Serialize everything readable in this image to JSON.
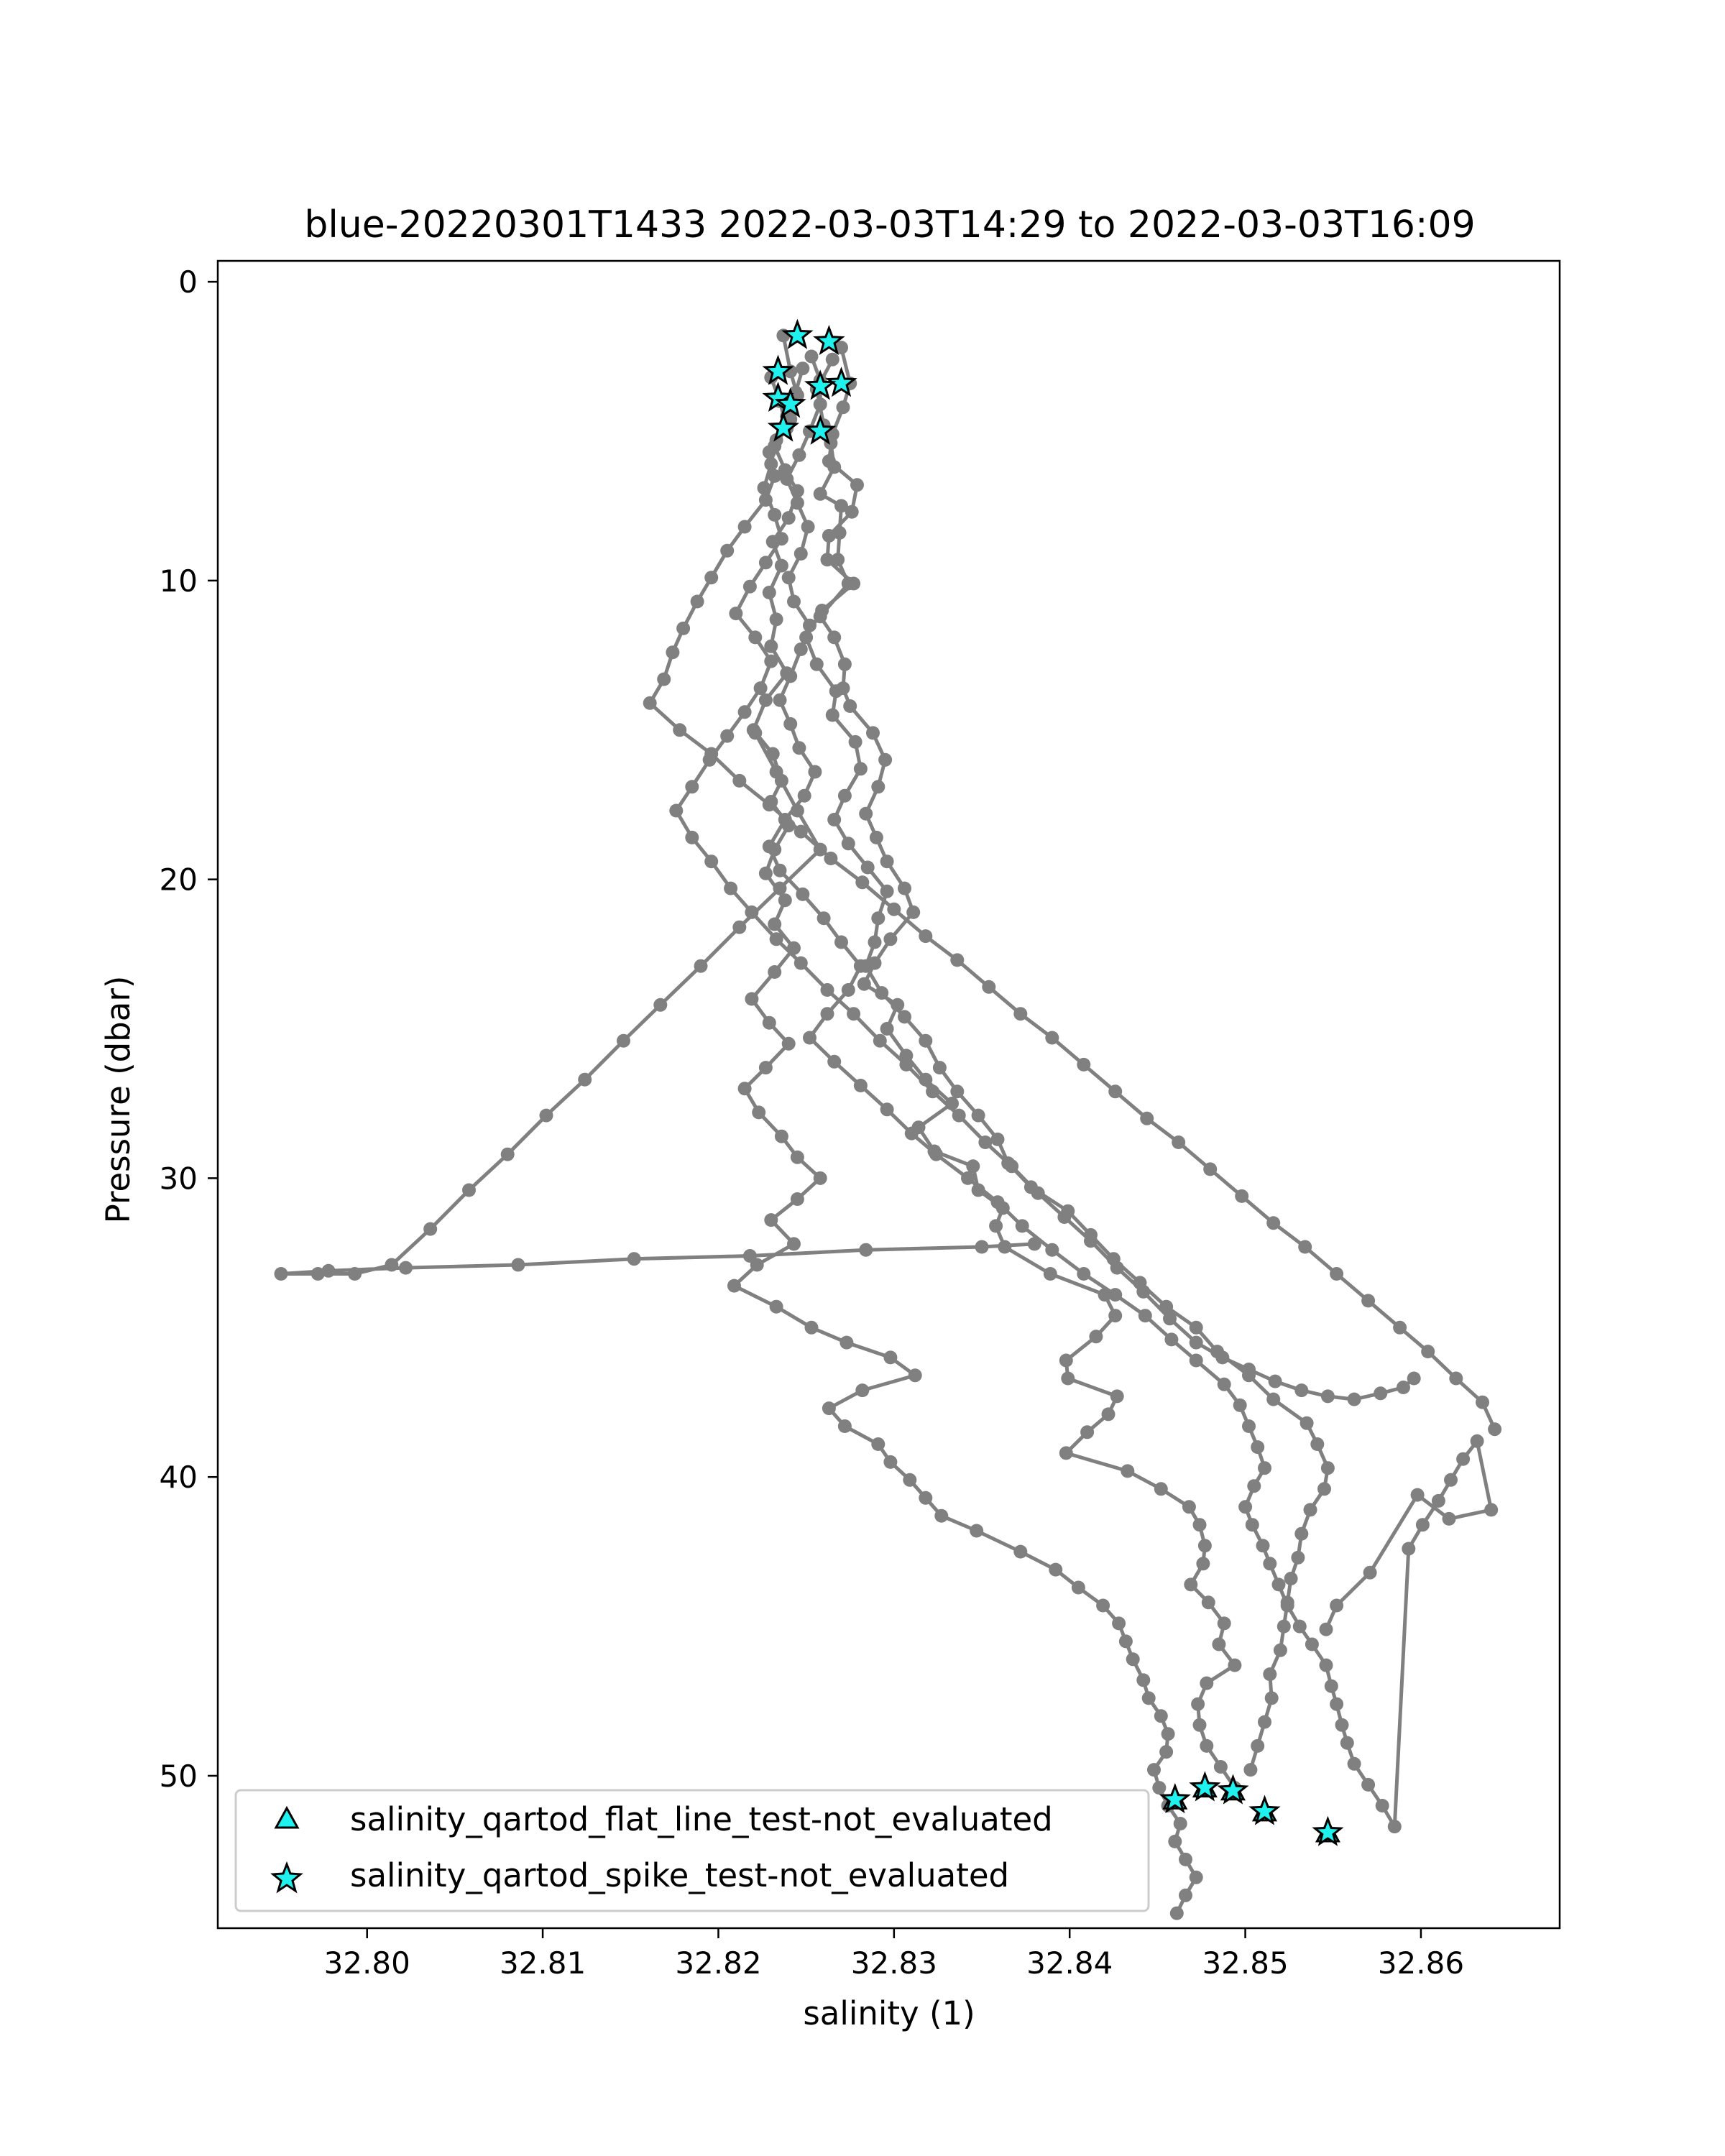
{
  "chart_data": {
    "type": "scatter",
    "title": "blue-20220301T1433 2022-03-03T14:29 to 2022-03-03T16:09",
    "xlabel": "salinity (1)",
    "ylabel": "Pressure (dbar)",
    "xlim": [
      32.7915,
      32.8679
    ],
    "ylim": [
      55.1,
      -0.7
    ],
    "y_inverted": true,
    "grid": false,
    "xticks": [
      32.8,
      32.81,
      32.82,
      32.83,
      32.84,
      32.85,
      32.86
    ],
    "xtick_labels": [
      "32.80",
      "32.81",
      "32.82",
      "32.83",
      "32.84",
      "32.85",
      "32.86"
    ],
    "yticks": [
      0,
      10,
      20,
      30,
      40,
      50
    ],
    "ytick_labels": [
      "0",
      "10",
      "20",
      "30",
      "40",
      "50"
    ],
    "legend_position": "lower-left",
    "colors": {
      "line": "#808080",
      "marker_fill": "#1ff1ee",
      "marker_edge": "#000000"
    },
    "series": [
      {
        "kind": "line",
        "profiles": [
          {
            "x": [
              32.8265,
              32.8256,
              32.826,
              32.8264,
              32.8266,
              32.8258,
              32.827,
              32.8269,
              32.8268,
              32.8274,
              32.8258,
              32.8266,
              32.8272,
              32.8271,
              32.8275,
              32.8288,
              32.8295,
              32.8291,
              32.8284,
              32.829,
              32.8296,
              32.8306,
              32.8311,
              32.8298,
              32.8289,
              32.8283,
              32.8302,
              32.8296,
              32.8307,
              32.8318,
              32.8333,
              32.8314,
              32.8323,
              32.8345,
              32.8348,
              32.8362,
              32.8358,
              32.8363,
              32.8389,
              32.842,
              32.8426,
              32.8415,
              32.8398,
              32.8399,
              32.8427,
              32.8422,
              32.841,
              32.8398,
              32.8433,
              32.8452,
              32.8468,
              32.8474,
              32.8477,
              32.8476,
              32.8469,
              32.8479,
              32.8488,
              32.8485,
              32.8494,
              32.8478,
              32.8473,
              32.8474,
              32.8478,
              32.8486,
              32.8494
            ],
            "y": [
              2.6,
              3.6,
              4.8,
              5.4,
              6.2,
              7.1,
              7.5,
              8.4,
              9.3,
              10.1,
              11.2,
              11.9,
              12.8,
              13.6,
              14.2,
              15.1,
              16.0,
              16.9,
              17.8,
              18.6,
              19.4,
              20.3,
              21.1,
              22.0,
              22.8,
              23.5,
              24.2,
              25.0,
              25.9,
              26.7,
              27.5,
              28.3,
              29.1,
              29.6,
              30.4,
              31.0,
              31.6,
              32.3,
              33.2,
              33.9,
              34.6,
              35.3,
              36.1,
              36.7,
              37.3,
              37.9,
              38.5,
              39.2,
              39.8,
              40.4,
              41.0,
              41.6,
              42.3,
              42.9,
              43.6,
              44.2,
              44.9,
              45.6,
              46.3,
              46.9,
              47.6,
              48.3,
              49.0,
              49.7,
              50.4
            ]
          },
          {
            "x": [
              32.8237,
              32.8241,
              32.8245,
              32.8241,
              32.8232,
              32.8238,
              32.8245,
              32.824,
              32.8231,
              32.8236,
              32.8229,
              32.8233,
              32.823,
              32.8239,
              32.8227,
              32.822,
              32.8231,
              32.8236,
              32.823,
              32.824,
              32.8232,
              32.8227,
              32.8238,
              32.8232,
              32.8243,
              32.8232,
              32.8219,
              32.8229,
              32.824,
              32.8227,
              32.8215,
              32.8223,
              32.8236,
              32.8245,
              32.8258,
              32.8245,
              32.823,
              32.8243,
              32.8222,
              32.8209,
              32.8233,
              32.8253,
              32.8273,
              32.8298,
              32.8312,
              32.8282,
              32.8263,
              32.8272,
              32.8291,
              32.8298,
              32.8309,
              32.8318,
              32.8327,
              32.8347,
              32.8372,
              32.8392,
              32.8405,
              32.8419,
              32.8428,
              32.8432,
              32.8436,
              32.8442,
              32.8445,
              32.8452,
              32.8456,
              32.8455,
              32.8448,
              32.8451,
              32.8456,
              32.8463,
              32.846,
              32.8466,
              32.8472,
              32.8466,
              32.8461
            ],
            "y": [
              1.8,
              3.0,
              3.8,
              4.6,
              5.5,
              6.3,
              7.0,
              7.9,
              8.7,
              9.5,
              10.4,
              11.3,
              12.2,
              13.1,
              14.0,
              15.0,
              15.8,
              16.7,
              17.4,
              18.2,
              19.0,
              19.8,
              20.7,
              21.5,
              22.3,
              23.1,
              24.0,
              24.8,
              25.5,
              26.3,
              27.0,
              27.8,
              28.6,
              29.3,
              30.0,
              30.7,
              31.4,
              32.2,
              32.9,
              33.6,
              34.3,
              35.0,
              35.5,
              36.0,
              36.6,
              37.1,
              37.7,
              38.3,
              38.9,
              39.5,
              40.1,
              40.7,
              41.3,
              41.8,
              42.5,
              43.1,
              43.7,
              44.3,
              44.9,
              45.5,
              46.1,
              46.8,
              47.4,
              48.0,
              48.6,
              49.2,
              49.8,
              50.4,
              51.0,
              51.6,
              52.2,
              52.8,
              53.4,
              54.0,
              54.6
            ]
          },
          {
            "x": [
              32.827,
              32.8275,
              32.8271,
              32.8265,
              32.8263,
              32.8279,
              32.8276,
              32.8263,
              32.8262,
              32.8277,
              32.8259,
              32.825,
              32.8256,
              32.8267,
              32.8265,
              32.8278,
              32.8281,
              32.8272,
              32.8266,
              32.8274,
              32.8285,
              32.8296,
              32.8291,
              32.8289,
              32.8284,
              32.8293,
              32.8306,
              32.8318,
              32.8326,
              32.8336,
              32.8348,
              32.8359,
              32.8365,
              32.8378,
              32.8399,
              32.8412,
              32.8425,
              32.844,
              32.8455,
              32.8472,
              32.8484,
              32.8502,
              32.8516,
              32.8535,
              32.8541,
              32.8547,
              32.8545,
              32.8537,
              32.8532,
              32.853,
              32.8526,
              32.8524,
              32.8522,
              32.852,
              32.8514,
              32.8515,
              32.8511,
              32.8507,
              32.8503
            ],
            "y": [
              2.2,
              3.4,
              4.2,
              5.1,
              6.0,
              6.8,
              7.7,
              8.5,
              9.3,
              10.1,
              11.0,
              11.9,
              12.8,
              13.7,
              14.5,
              15.4,
              16.3,
              17.2,
              18.0,
              18.8,
              19.6,
              20.4,
              21.3,
              22.1,
              22.9,
              23.8,
              24.6,
              25.4,
              26.3,
              27.1,
              27.9,
              28.7,
              29.5,
              30.3,
              31.1,
              31.9,
              32.7,
              33.5,
              34.3,
              35.0,
              35.8,
              36.6,
              37.4,
              38.2,
              38.9,
              39.7,
              40.4,
              41.1,
              41.9,
              42.7,
              43.4,
              44.2,
              45.0,
              45.8,
              46.6,
              47.4,
              48.2,
              49.0,
              49.8
            ]
          },
          {
            "x": [
              32.8253,
              32.8258,
              32.8258,
              32.8252,
              32.8246,
              32.8239,
              32.8245,
              32.8251,
              32.8247,
              32.824,
              32.8243,
              32.8252,
              32.8247,
              32.8241,
              32.8235,
              32.8241,
              32.8246,
              32.8255,
              32.8249,
              32.8238,
              32.8229,
              32.8235,
              32.8248,
              32.826,
              32.827,
              32.8281,
              32.8274,
              32.8262,
              32.8252,
              32.8266,
              32.8281,
              32.8296,
              32.831,
              32.8324,
              32.8342,
              32.8359,
              32.8373,
              32.839,
              32.8408,
              32.8426,
              32.8443,
              32.8458,
              32.8472,
              32.8488,
              32.8497,
              32.8502,
              32.8507,
              32.8511,
              32.8505,
              32.85,
              32.8504,
              32.851,
              32.8514,
              32.8519,
              32.8524,
              32.8531,
              32.8538,
              32.8546,
              32.8549,
              32.8552,
              32.8555,
              32.8558,
              32.8562,
              32.857,
              32.8578,
              32.8585,
              32.8593,
              32.8601,
              32.861,
              32.8617,
              32.8624,
              32.8632,
              32.864,
              32.8616,
              32.8598,
              32.8571,
              32.8552,
              32.8546
            ],
            "y": [
              2.5,
              3.3,
              4.1,
              5.0,
              5.8,
              6.6,
              7.4,
              8.2,
              9.1,
              9.9,
              10.7,
              11.5,
              12.3,
              13.2,
              14.0,
              14.8,
              15.6,
              16.4,
              17.2,
              18.0,
              18.9,
              19.7,
              20.5,
              21.3,
              22.1,
              22.9,
              23.7,
              24.5,
              25.3,
              26.1,
              26.9,
              27.7,
              28.5,
              29.2,
              30.0,
              30.8,
              31.6,
              32.4,
              33.2,
              33.9,
              34.6,
              35.4,
              36.1,
              36.9,
              37.6,
              38.3,
              39.0,
              39.7,
              40.3,
              41.0,
              41.6,
              42.3,
              42.9,
              43.6,
              44.3,
              45.0,
              45.6,
              46.3,
              47.0,
              47.6,
              48.3,
              48.9,
              49.6,
              50.3,
              51.0,
              51.7,
              42.4,
              41.6,
              40.8,
              40.1,
              39.4,
              38.8,
              41.1,
              41.4,
              40.6,
              43.2,
              44.3,
              45.1
            ]
          },
          {
            "x": [
              32.8248,
              32.8244,
              32.8239,
              32.8233,
              32.823,
              32.8226,
              32.8232,
              32.8236,
              32.8227,
              32.8218,
              32.821,
              32.8221,
              32.823,
              32.8224,
              32.8215,
              32.8205,
              32.8195,
              32.8185,
              32.8176,
              32.8185,
              32.8196,
              32.8207,
              32.8219,
              32.8233,
              32.8247,
              32.8262,
              32.8277,
              32.8292,
              32.8307,
              32.8322,
              32.8337,
              32.8352,
              32.8367,
              32.8382,
              32.8397,
              32.8412,
              32.8427,
              32.8442,
              32.8457,
              32.8472,
              32.8487,
              32.8502,
              32.8517,
              32.8532,
              32.8547,
              32.8562,
              32.8577,
              32.859,
              32.8596
            ],
            "y": [
              2.9,
              3.7,
              4.5,
              5.3,
              6.1,
              6.9,
              7.8,
              8.6,
              9.4,
              10.2,
              11.1,
              11.9,
              12.7,
              13.6,
              14.4,
              15.2,
              16.0,
              16.9,
              17.7,
              18.6,
              19.4,
              20.3,
              21.1,
              22.0,
              22.8,
              23.7,
              24.5,
              25.4,
              26.2,
              27.1,
              27.9,
              28.8,
              29.6,
              30.5,
              31.3,
              32.1,
              33.0,
              33.8,
              34.7,
              35.5,
              36.0,
              36.4,
              36.8,
              37.1,
              37.3,
              37.4,
              37.2,
              37.0,
              36.7
            ]
          },
          {
            "x": [
              32.823,
              32.8235,
              32.8239,
              32.8229,
              32.8232,
              32.8227,
              32.8215,
              32.8205,
              32.8196,
              32.8188,
              32.818,
              32.8174,
              32.8169,
              32.8161,
              32.8178,
              32.8196,
              32.8212,
              32.8229,
              32.8247,
              32.8264,
              32.8282,
              32.83,
              32.8318,
              32.8336,
              32.8354,
              32.8372,
              32.839,
              32.8408,
              32.8426,
              32.8444,
              32.8462,
              32.848,
              32.8498,
              32.8516,
              32.8534,
              32.8552,
              32.857,
              32.8588,
              32.8604,
              32.862,
              32.8635,
              32.8642
            ],
            "y": [
              3.2,
              4.0,
              4.9,
              5.7,
              6.5,
              7.3,
              8.2,
              9.0,
              9.9,
              10.7,
              11.6,
              12.4,
              13.3,
              14.1,
              15.0,
              15.8,
              16.7,
              17.5,
              18.4,
              19.3,
              20.1,
              21.0,
              21.9,
              22.7,
              23.6,
              24.5,
              25.3,
              26.2,
              27.1,
              28.0,
              28.8,
              29.7,
              30.6,
              31.5,
              32.3,
              33.2,
              34.1,
              35.0,
              35.8,
              36.7,
              37.5,
              38.4
            ]
          },
          {
            "x": [
              32.8221,
              32.8233,
              32.8245,
              32.8258,
              32.8235,
              32.8212,
              32.819,
              32.8167,
              32.8146,
              32.8124,
              32.8102,
              32.808,
              32.8058,
              32.8036,
              32.8014,
              32.7993,
              32.7972,
              32.7951,
              32.7978,
              32.8022,
              32.8086,
              32.8152,
              32.8218,
              32.8284,
              32.835,
              32.838
            ],
            "y": [
              15.1,
              16.4,
              17.7,
              19.0,
              20.3,
              21.6,
              22.9,
              24.2,
              25.4,
              26.7,
              27.9,
              29.2,
              30.4,
              31.7,
              32.9,
              33.2,
              33.2,
              33.2,
              33.1,
              33.0,
              32.9,
              32.7,
              32.6,
              32.4,
              32.3,
              32.2
            ]
          }
        ]
      },
      {
        "name": "salinity_qartod_flat_line_test-not_evaluated",
        "kind": "scatter",
        "marker": "triangle",
        "x": [
          32.846,
          32.8477,
          32.8493,
          32.8511,
          32.8547
        ],
        "y": [
          50.8,
          50.4,
          50.5,
          51.2,
          51.9
        ]
      },
      {
        "name": "salinity_qartod_spike_test-not_evaluated",
        "kind": "scatter",
        "marker": "star",
        "x": [
          32.8245,
          32.8263,
          32.8234,
          32.827,
          32.8258,
          32.8234,
          32.8241,
          32.8237,
          32.8258,
          32.846,
          32.8477,
          32.8493,
          32.8511,
          32.8547
        ],
        "y": [
          1.8,
          2.0,
          3.0,
          3.4,
          3.5,
          3.9,
          4.1,
          4.9,
          5.0,
          50.8,
          50.4,
          50.5,
          51.2,
          51.9
        ]
      }
    ]
  }
}
